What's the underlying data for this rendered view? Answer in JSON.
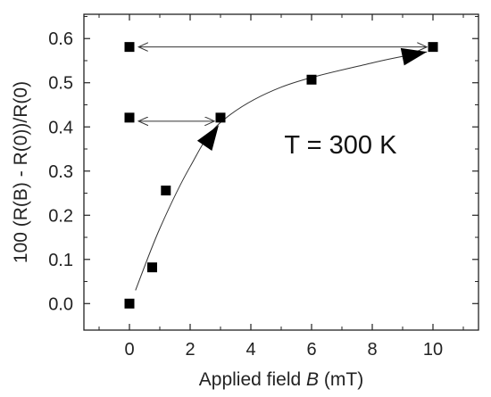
{
  "chart_data": {
    "type": "scatter",
    "xlabel_prefix": "Applied field ",
    "xlabel_var": "B",
    "xlabel_suffix": " (mT)",
    "ylabel": "100 (R(B) - R(0))/R(0)",
    "xlim": [
      -1.5,
      11.5
    ],
    "ylim": [
      -0.06,
      0.655
    ],
    "xticks": [
      0,
      2,
      4,
      6,
      8,
      10
    ],
    "yticks": [
      0.0,
      0.1,
      0.2,
      0.3,
      0.4,
      0.5,
      0.6
    ],
    "ytick_labels": [
      "0.0",
      "0.1",
      "0.2",
      "0.3",
      "0.4",
      "0.5",
      "0.6"
    ],
    "grid": false,
    "points": [
      {
        "x": 0,
        "y": 0.0
      },
      {
        "x": 0.75,
        "y": 0.082
      },
      {
        "x": 1.2,
        "y": 0.256
      },
      {
        "x": 3,
        "y": 0.421
      },
      {
        "x": 6,
        "y": 0.507
      },
      {
        "x": 10,
        "y": 0.581
      },
      {
        "x": 0,
        "y": 0.421
      },
      {
        "x": 0,
        "y": 0.581
      }
    ],
    "annotation": "T = 300 K",
    "double_arrows": [
      {
        "x1": 0.3,
        "x2": 2.8,
        "y": 0.413
      },
      {
        "x1": 0.3,
        "x2": 9.8,
        "y": 0.581
      }
    ],
    "trend_arrow_points": [
      [
        0.2,
        0.03
      ],
      [
        1.0,
        0.17
      ],
      [
        2.0,
        0.31
      ],
      [
        3.0,
        0.41
      ],
      [
        5.0,
        0.49
      ],
      [
        8.0,
        0.545
      ],
      [
        9.8,
        0.57
      ]
    ]
  }
}
